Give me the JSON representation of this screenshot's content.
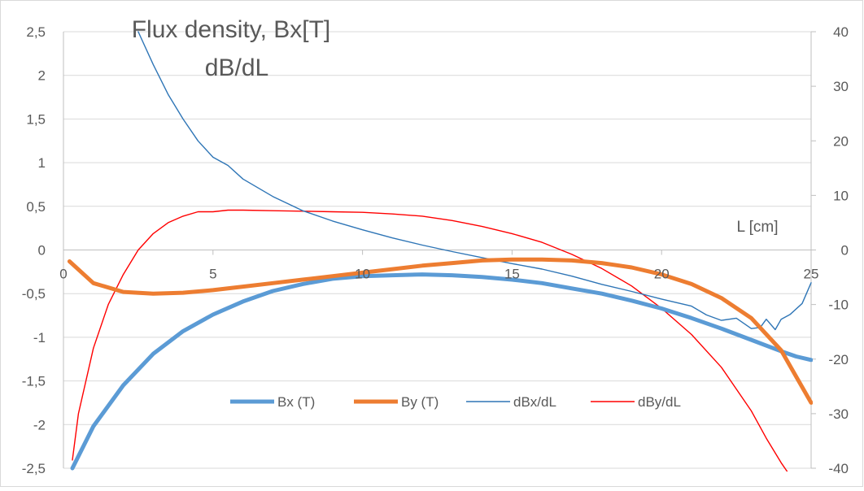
{
  "chart_data": {
    "type": "line",
    "title": [
      "Flux density, Bx[T]",
      "dB/dL"
    ],
    "xlabel": "L [cm]",
    "x_ticks": [
      "0",
      "5",
      "10",
      "15",
      "20",
      "25"
    ],
    "xlim": [
      0,
      25
    ],
    "y_left": {
      "ylim": [
        -2.5,
        2.5
      ],
      "ticks": [
        "2,5",
        "2",
        "1,5",
        "1",
        "0,5",
        "0",
        "-0,5",
        "-1",
        "-1,5",
        "-2",
        "-2,5"
      ]
    },
    "y_right": {
      "ylim": [
        -40,
        40
      ],
      "ticks": [
        "40",
        "30",
        "20",
        "10",
        "0",
        "-10",
        "-20",
        "-30",
        "-40"
      ]
    },
    "grid": "horizontal",
    "legend_position": "bottom-center",
    "series": [
      {
        "name": "Bx (T)",
        "axis": "left",
        "color": "#5b9bd5",
        "width": "thick",
        "x": [
          0.3,
          1,
          2,
          3,
          4,
          5,
          6,
          7,
          8,
          9,
          10,
          11,
          12,
          13,
          14,
          15,
          16,
          17,
          18,
          19,
          20,
          21,
          22,
          23,
          24,
          24.5,
          25
        ],
        "y": [
          -2.5,
          -2.02,
          -1.55,
          -1.19,
          -0.93,
          -0.74,
          -0.59,
          -0.47,
          -0.39,
          -0.33,
          -0.3,
          -0.29,
          -0.28,
          -0.29,
          -0.31,
          -0.34,
          -0.38,
          -0.44,
          -0.5,
          -0.58,
          -0.67,
          -0.78,
          -0.9,
          -1.03,
          -1.16,
          -1.22,
          -1.26
        ]
      },
      {
        "name": "By (T)",
        "axis": "left",
        "color": "#ed7d31",
        "width": "thick",
        "x": [
          0.2,
          1,
          2,
          3,
          4,
          5,
          6,
          7,
          8,
          9,
          10,
          11,
          12,
          13,
          14,
          15,
          16,
          17,
          18,
          19,
          20,
          21,
          22,
          23,
          24,
          24.5,
          25
        ],
        "y": [
          -0.13,
          -0.38,
          -0.48,
          -0.5,
          -0.49,
          -0.46,
          -0.42,
          -0.38,
          -0.34,
          -0.3,
          -0.26,
          -0.22,
          -0.18,
          -0.15,
          -0.12,
          -0.11,
          -0.11,
          -0.12,
          -0.15,
          -0.2,
          -0.28,
          -0.39,
          -0.55,
          -0.78,
          -1.15,
          -1.45,
          -1.75
        ]
      },
      {
        "name": "dBx/dL",
        "axis": "right",
        "color": "#2e75b6",
        "width": "thin",
        "x": [
          2.5,
          3,
          3.5,
          4,
          4.5,
          5,
          5.5,
          6,
          7,
          8,
          9,
          10,
          11,
          12,
          13,
          14,
          15,
          16,
          17,
          18,
          19,
          20,
          21,
          21.5,
          22,
          22.5,
          23,
          23.3,
          23.5,
          23.8,
          24,
          24.3,
          24.7,
          25
        ],
        "y": [
          40,
          34,
          28.5,
          24,
          20,
          17,
          15.5,
          13,
          9.8,
          7.2,
          5.3,
          3.7,
          2.2,
          0.9,
          -0.3,
          -1.4,
          -2.5,
          -3.5,
          -4.8,
          -6.3,
          -7.6,
          -9,
          -10.3,
          -11.9,
          -12.9,
          -12.5,
          -14.4,
          -14.2,
          -12.7,
          -14.6,
          -12.7,
          -11.8,
          -9.8,
          -6
        ]
      },
      {
        "name": "dBy/dL",
        "axis": "right",
        "color": "#ff0000",
        "width": "thin",
        "x": [
          0.3,
          0.5,
          1,
          1.5,
          2,
          2.5,
          3,
          3.5,
          4,
          4.5,
          5,
          5.5,
          6,
          7,
          8,
          9,
          10,
          11,
          12,
          13,
          14,
          15,
          16,
          17,
          18,
          19,
          20,
          21,
          22,
          23,
          23.5,
          24,
          24.5
        ],
        "y": [
          -38.5,
          -30,
          -18,
          -10,
          -4.5,
          0,
          3,
          5,
          6.2,
          7,
          7,
          7.3,
          7.3,
          7.2,
          7.1,
          7,
          6.9,
          6.6,
          6.2,
          5.4,
          4.3,
          3,
          1.4,
          -0.8,
          -3.4,
          -6.6,
          -10.7,
          -15.5,
          -21.5,
          -29.5,
          -34.5,
          -39,
          -43
        ]
      }
    ]
  }
}
